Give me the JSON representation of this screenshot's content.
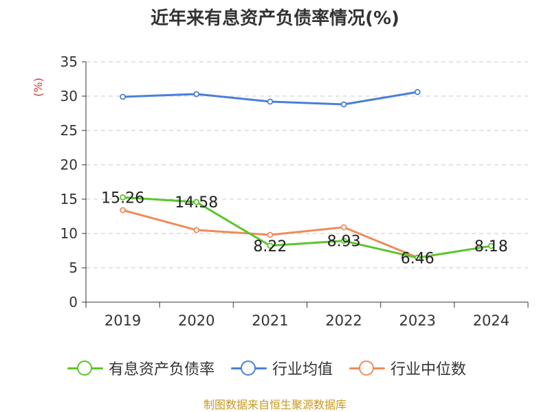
{
  "title": "近年来有息资产负债率情况(%)",
  "source_note": "制图数据来自恒生聚源数据库",
  "chart_data": {
    "type": "line",
    "title": "近年来有息资产负债率情况(%)",
    "ylabel": "(%)",
    "categories": [
      "2019",
      "2020",
      "2021",
      "2022",
      "2023",
      "2024"
    ],
    "y_ticks": [
      "0",
      "5",
      "10",
      "15",
      "20",
      "25",
      "30",
      "35"
    ],
    "ylim": [
      0,
      35
    ],
    "grid": true,
    "legend_position": "bottom",
    "series": [
      {
        "name": "有息资产负债率",
        "color": "#5bc52a",
        "values": [
          15.26,
          14.58,
          8.22,
          8.93,
          6.46,
          8.18
        ],
        "labels": [
          "15.26",
          "14.58",
          "8.22",
          "8.93",
          "6.46",
          "8.18"
        ]
      },
      {
        "name": "行业均值",
        "color": "#4a7fd8",
        "values": [
          29.9,
          30.3,
          29.2,
          28.8,
          30.6,
          null
        ]
      },
      {
        "name": "行业中位数",
        "color": "#f08b58",
        "values": [
          13.4,
          10.5,
          9.8,
          10.9,
          6.5,
          null
        ]
      }
    ]
  }
}
